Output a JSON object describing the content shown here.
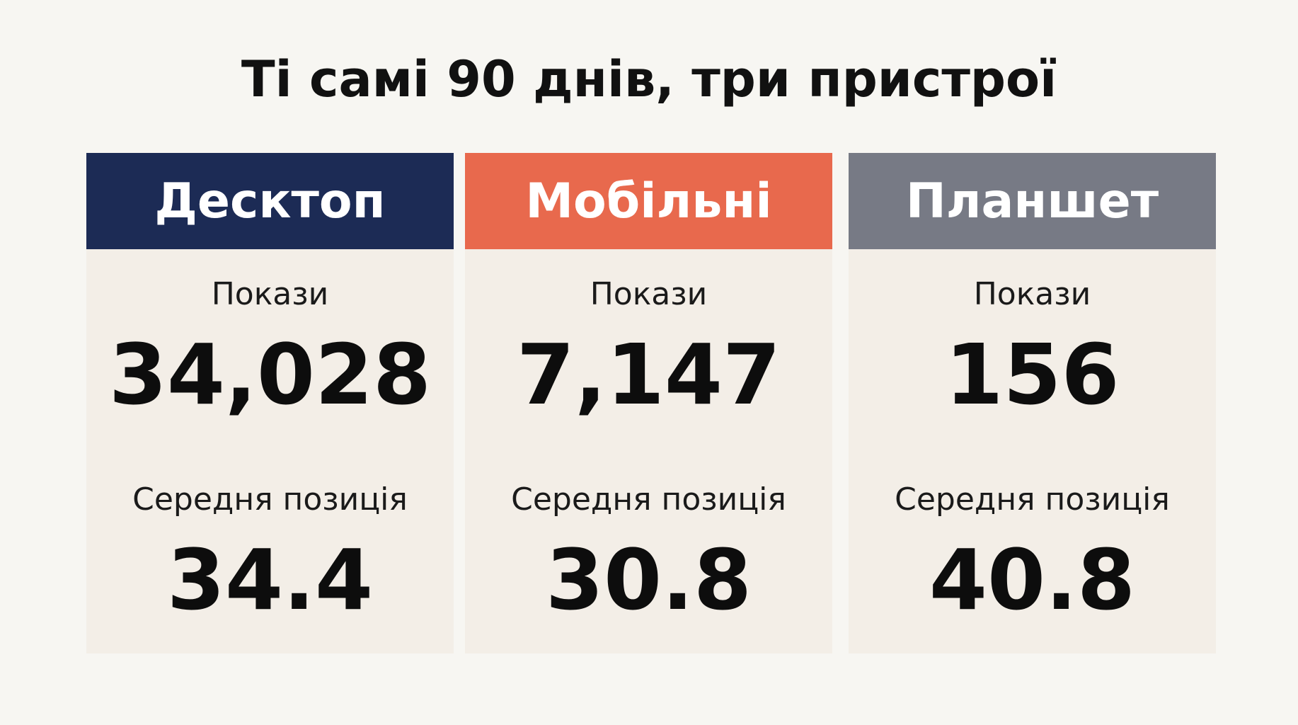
{
  "title": "Ті самі 90 днів, три пристрої",
  "devices": [
    {
      "name": "Десктоп",
      "color": "#1c2b55",
      "impressions_label": "Покази",
      "impressions_value": "34,028",
      "position_label": "Середня позиція",
      "position_value": "34.4"
    },
    {
      "name": "Мобільні",
      "color": "#e8694d",
      "impressions_label": "Покази",
      "impressions_value": "7,147",
      "position_label": "Середня позиція",
      "position_value": "30.8"
    },
    {
      "name": "Планшет",
      "color": "#777a85",
      "impressions_label": "Покази",
      "impressions_value": "156",
      "position_label": "Середня позиція",
      "position_value": "40.8"
    }
  ]
}
